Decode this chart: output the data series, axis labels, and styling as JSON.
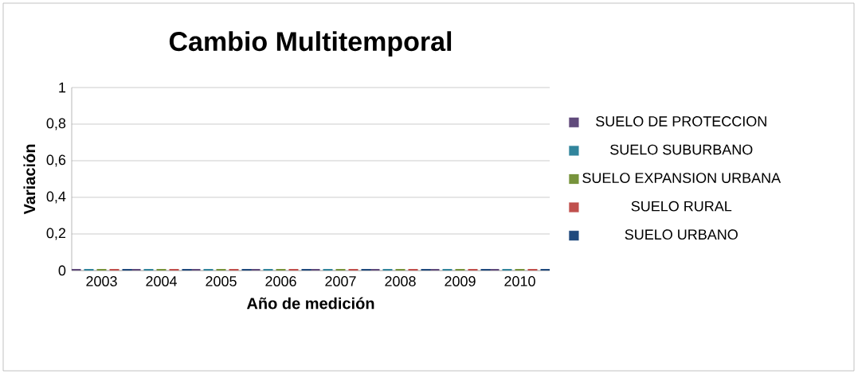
{
  "chart_data": {
    "type": "bar",
    "title": "Cambio Multitemporal",
    "xlabel": "Año de medición",
    "ylabel": "Variación",
    "categories": [
      "2003",
      "2004",
      "2005",
      "2006",
      "2007",
      "2008",
      "2009",
      "2010"
    ],
    "series": [
      {
        "name": "SUELO DE PROTECCION",
        "color": "#604a7b",
        "values": [
          0,
          0,
          0,
          0,
          0,
          0,
          0,
          0
        ]
      },
      {
        "name": "SUELO SUBURBANO",
        "color": "#31859c",
        "values": [
          0,
          0,
          0,
          0,
          0,
          0,
          0,
          0
        ]
      },
      {
        "name": "SUELO EXPANSION URBANA",
        "color": "#77933c",
        "values": [
          0,
          0,
          0,
          0,
          0,
          0,
          0,
          0
        ]
      },
      {
        "name": "SUELO RURAL",
        "color": "#c0504d",
        "values": [
          0,
          0,
          0,
          0,
          0,
          0,
          0,
          0
        ]
      },
      {
        "name": "SUELO URBANO",
        "color": "#1f497d",
        "values": [
          0,
          0,
          0,
          0,
          0,
          0,
          0,
          0
        ]
      }
    ],
    "ylim": [
      0,
      1
    ],
    "yticks": [
      0,
      {
        "value": 0.2,
        "label": "0,2"
      },
      {
        "value": 0.4,
        "label": "0,4"
      },
      {
        "value": 0.6,
        "label": "0,6"
      },
      {
        "value": 0.8,
        "label": "0,8"
      },
      1
    ],
    "grid": "y",
    "legend": "right"
  }
}
